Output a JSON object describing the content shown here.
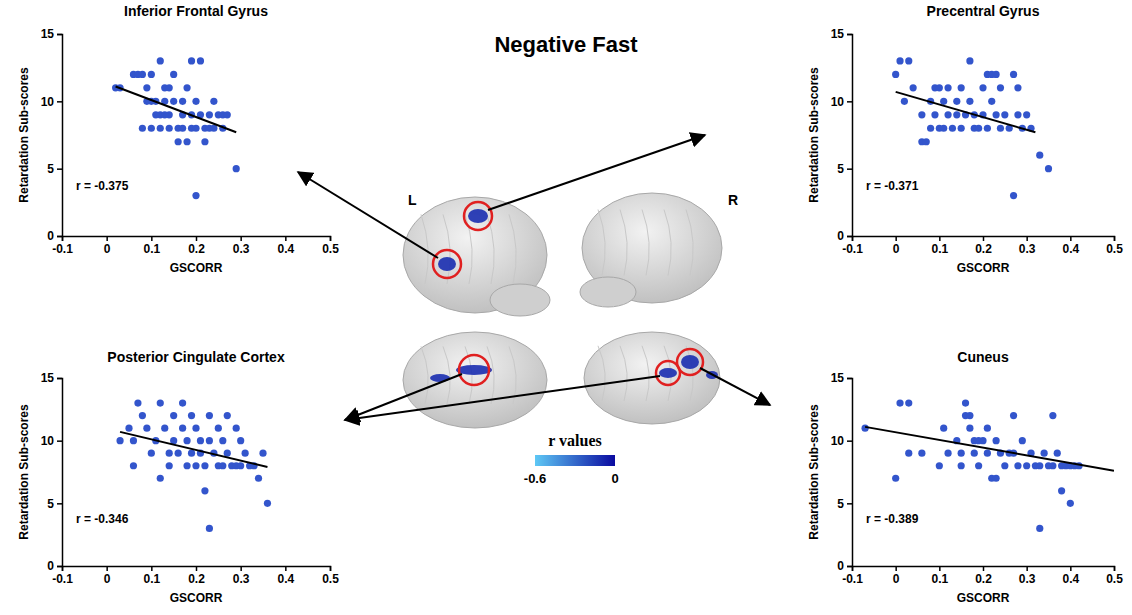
{
  "title": "Negative Fast",
  "brain": {
    "hemispheres": [
      "L",
      "R"
    ],
    "colorbar": {
      "title": "r values",
      "range": [
        -0.6,
        0
      ],
      "ticks": [
        -0.6,
        0
      ],
      "colors": [
        "#5ec8f5",
        "#0a0aa0"
      ]
    }
  },
  "chart_data": [
    {
      "type": "scatter",
      "title": "Inferior Frontal Gyrus",
      "x_label": "GSCORR",
      "y_label": "Retardation Sub-scores",
      "color": "#3355cc",
      "annotation": "r = -0.375",
      "x": [
        0.02,
        0.03,
        0.06,
        0.07,
        0.08,
        0.09,
        0.1,
        0.1,
        0.11,
        0.12,
        0.12,
        0.13,
        0.13,
        0.14,
        0.14,
        0.15,
        0.15,
        0.16,
        0.17,
        0.17,
        0.18,
        0.18,
        0.19,
        0.19,
        0.19,
        0.2,
        0.2,
        0.2,
        0.21,
        0.21,
        0.22,
        0.22,
        0.23,
        0.24,
        0.24,
        0.25,
        0.26,
        0.26,
        0.27,
        0.29,
        0.08,
        0.1,
        0.12,
        0.14,
        0.16,
        0.11,
        0.13,
        0.09,
        0.17,
        0.23
      ],
      "values": [
        11,
        11,
        12,
        12,
        12,
        11,
        12,
        10,
        10,
        13,
        9,
        11,
        10,
        11,
        9,
        12,
        10,
        8,
        8,
        10,
        11,
        7,
        8,
        9,
        13,
        3,
        10,
        8,
        13,
        9,
        8,
        7,
        9,
        8,
        10,
        9,
        9,
        8,
        9,
        5,
        8,
        8,
        8,
        8,
        7,
        9,
        9,
        10,
        9,
        8
      ],
      "fit": {
        "x": [
          0.02,
          0.29
        ],
        "values": [
          11.1,
          7.7
        ]
      },
      "xlim": [
        -0.1,
        0.5
      ],
      "xticks": [
        -0.1,
        0,
        0.1,
        0.2,
        0.3,
        0.4,
        0.5
      ],
      "ylim": [
        0,
        15
      ],
      "yticks": [
        0,
        5,
        10,
        15
      ]
    },
    {
      "type": "scatter",
      "title": "Precentral Gyrus",
      "x_label": "GSCORR",
      "y_label": "Retardation Sub-scores",
      "color": "#3355cc",
      "annotation": "r = -0.371",
      "x": [
        0,
        0.01,
        0.02,
        0.03,
        0.04,
        0.06,
        0.06,
        0.07,
        0.08,
        0.08,
        0.09,
        0.09,
        0.1,
        0.1,
        0.11,
        0.11,
        0.12,
        0.12,
        0.13,
        0.14,
        0.14,
        0.15,
        0.15,
        0.16,
        0.17,
        0.17,
        0.18,
        0.18,
        0.19,
        0.2,
        0.2,
        0.21,
        0.21,
        0.22,
        0.22,
        0.23,
        0.23,
        0.24,
        0.24,
        0.25,
        0.26,
        0.27,
        0.27,
        0.28,
        0.28,
        0.29,
        0.3,
        0.31,
        0.33,
        0.35
      ],
      "values": [
        12,
        13,
        10,
        13,
        11,
        7,
        9,
        7,
        10,
        8,
        11,
        9,
        8,
        11,
        8,
        10,
        9,
        11,
        8,
        10,
        9,
        11,
        8,
        9,
        13,
        10,
        9,
        8,
        8,
        9,
        11,
        12,
        8,
        10,
        12,
        9,
        12,
        8,
        11,
        9,
        8,
        12,
        3,
        11,
        9,
        8,
        9,
        8,
        6,
        5
      ],
      "fit": {
        "x": [
          0,
          0.32
        ],
        "values": [
          10.7,
          7.7
        ]
      },
      "xlim": [
        -0.1,
        0.5
      ],
      "xticks": [
        -0.1,
        0,
        0.1,
        0.2,
        0.3,
        0.4,
        0.5
      ],
      "ylim": [
        0,
        15
      ],
      "yticks": [
        0,
        5,
        10,
        15
      ]
    },
    {
      "type": "scatter",
      "title": "Posterior Cingulate Cortex",
      "x_label": "GSCORR",
      "y_label": "Retardation Sub-scores",
      "color": "#3355cc",
      "annotation": "r = -0.346",
      "x": [
        0.03,
        0.05,
        0.06,
        0.06,
        0.07,
        0.08,
        0.09,
        0.1,
        0.11,
        0.12,
        0.12,
        0.13,
        0.14,
        0.15,
        0.15,
        0.16,
        0.17,
        0.17,
        0.18,
        0.18,
        0.19,
        0.19,
        0.2,
        0.2,
        0.21,
        0.21,
        0.22,
        0.22,
        0.23,
        0.23,
        0.23,
        0.24,
        0.25,
        0.25,
        0.26,
        0.26,
        0.27,
        0.27,
        0.28,
        0.29,
        0.29,
        0.3,
        0.3,
        0.31,
        0.32,
        0.33,
        0.34,
        0.35,
        0.36,
        0.14
      ],
      "values": [
        10,
        11,
        10,
        8,
        13,
        12,
        11,
        9,
        10,
        13,
        7,
        11,
        8,
        12,
        10,
        9,
        13,
        11,
        10,
        8,
        12,
        9,
        11,
        8,
        10,
        9,
        8,
        6,
        3,
        12,
        10,
        9,
        11,
        8,
        10,
        8,
        12,
        9,
        8,
        11,
        8,
        10,
        8,
        9,
        8,
        8,
        7,
        9,
        5,
        9
      ],
      "fit": {
        "x": [
          0.03,
          0.36
        ],
        "values": [
          10.7,
          7.9
        ]
      },
      "xlim": [
        -0.1,
        0.5
      ],
      "xticks": [
        -0.1,
        0,
        0.1,
        0.2,
        0.3,
        0.4,
        0.5
      ],
      "ylim": [
        0,
        15
      ],
      "yticks": [
        0,
        5,
        10,
        15
      ]
    },
    {
      "type": "scatter",
      "title": "Cuneus",
      "x_label": "GSCORR",
      "y_label": "Retardation Sub-scores",
      "color": "#3355cc",
      "annotation": "r = -0.389",
      "x": [
        -0.07,
        0,
        0.01,
        0.03,
        0.03,
        0.06,
        0.1,
        0.11,
        0.12,
        0.14,
        0.15,
        0.16,
        0.16,
        0.17,
        0.17,
        0.18,
        0.18,
        0.19,
        0.19,
        0.2,
        0.21,
        0.21,
        0.22,
        0.23,
        0.23,
        0.24,
        0.25,
        0.26,
        0.27,
        0.27,
        0.28,
        0.29,
        0.3,
        0.31,
        0.32,
        0.33,
        0.33,
        0.34,
        0.35,
        0.36,
        0.36,
        0.37,
        0.38,
        0.38,
        0.39,
        0.4,
        0.4,
        0.41,
        0.42,
        0.15
      ],
      "values": [
        11,
        7,
        13,
        13,
        9,
        9,
        8,
        11,
        9,
        10,
        8,
        13,
        12,
        12,
        11,
        10,
        9,
        10,
        8,
        10,
        9,
        11,
        7,
        7,
        10,
        9,
        8,
        9,
        12,
        9,
        8,
        10,
        8,
        9,
        8,
        3,
        8,
        9,
        8,
        12,
        8,
        9,
        6,
        8,
        8,
        5,
        8,
        8,
        8,
        9
      ],
      "fit": {
        "x": [
          -0.07,
          0.5
        ],
        "values": [
          11.1,
          7.6
        ]
      },
      "xlim": [
        -0.1,
        0.5
      ],
      "xticks": [
        -0.1,
        0,
        0.1,
        0.2,
        0.3,
        0.4,
        0.5
      ],
      "ylim": [
        0,
        15
      ],
      "yticks": [
        0,
        5,
        10,
        15
      ]
    }
  ]
}
